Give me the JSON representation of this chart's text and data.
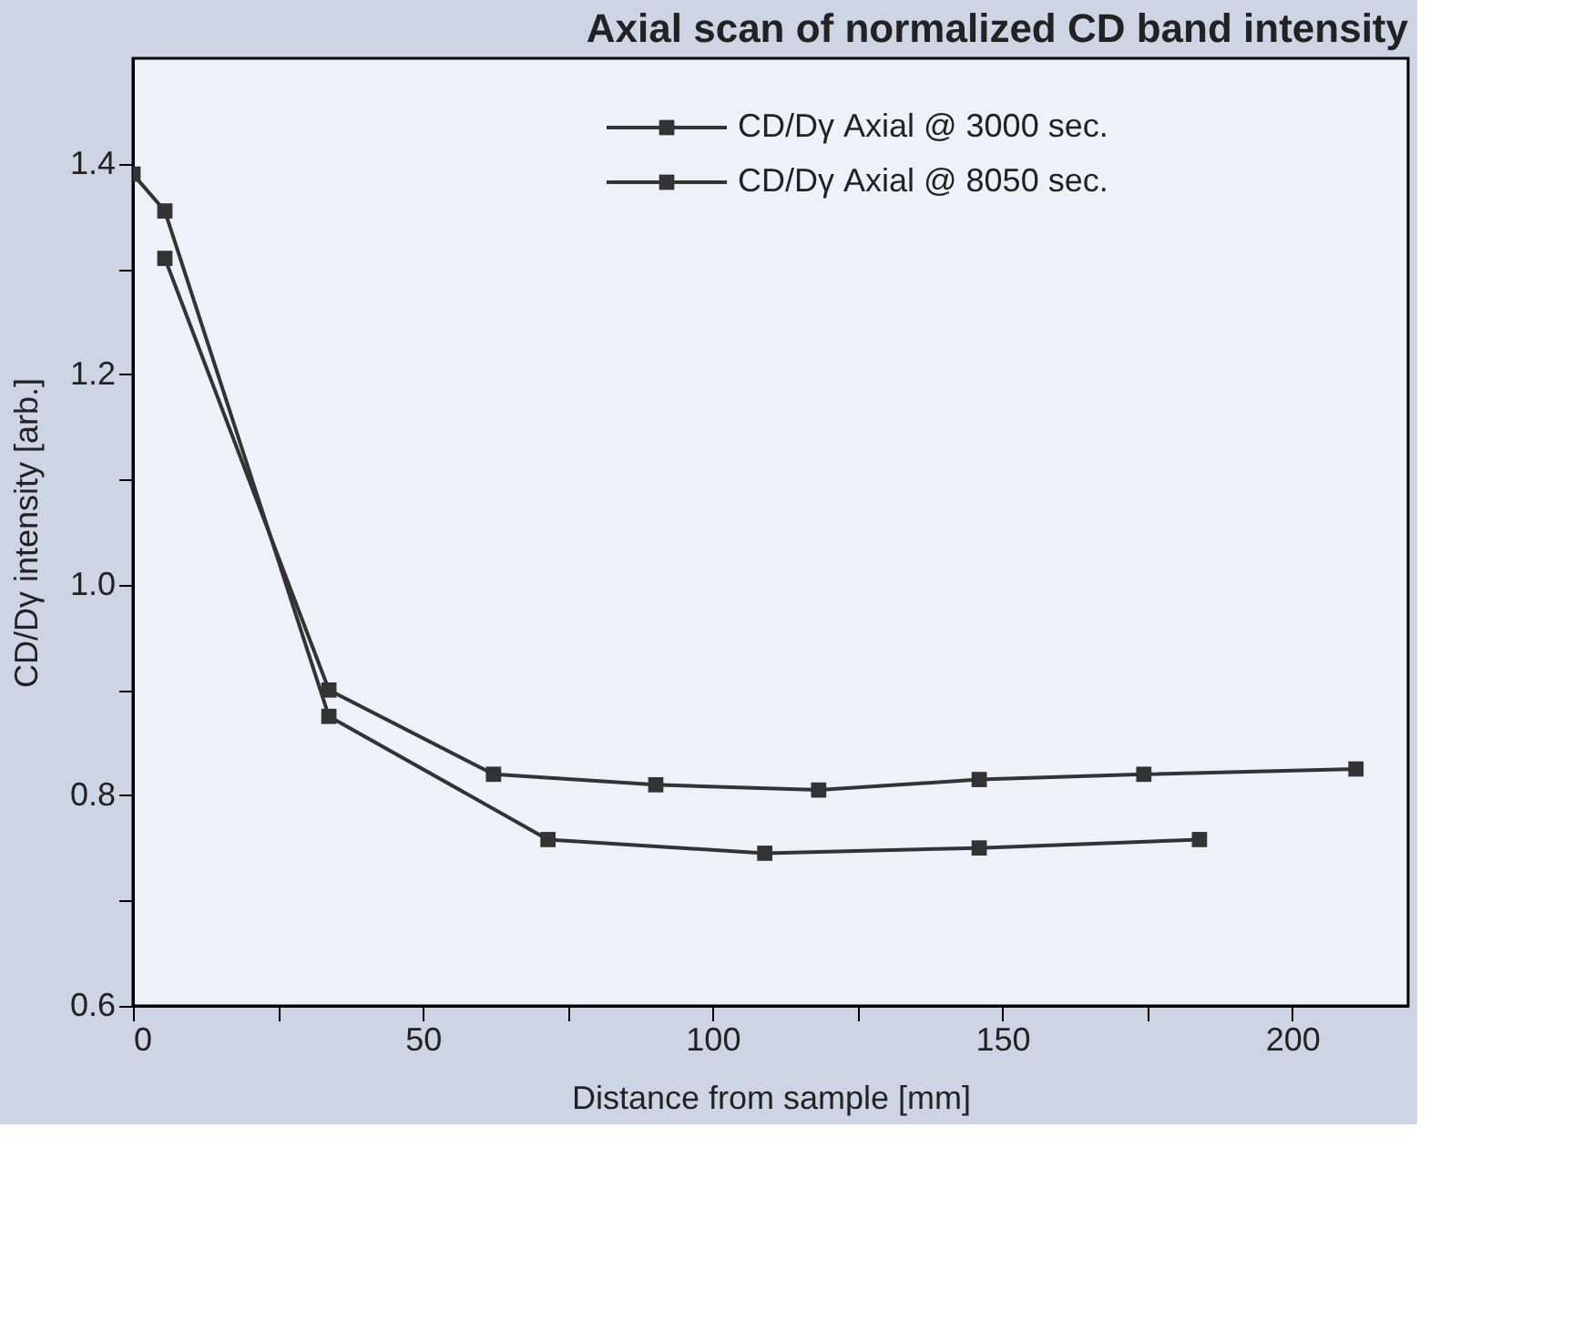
{
  "chart_data": {
    "type": "line",
    "title": "Axial scan of normalized CD band intensity",
    "xlabel": "Distance from sample [mm]",
    "ylabel": "CD/Dγ intensity [arb.]",
    "series": [
      {
        "name": "CD/Dγ Axial @ 3000 sec.",
        "color": "#333333",
        "x": [
          5.5,
          33.8,
          62.2,
          90.2,
          118.3,
          146,
          174.4,
          211
        ],
        "values": [
          1.31,
          0.9,
          0.82,
          0.81,
          0.805,
          0.815,
          0.82,
          0.825
        ]
      },
      {
        "name": "CD/Dγ Axial @ 8050 sec.",
        "color": "#333333",
        "x": [
          0,
          5.5,
          33.8,
          71.6,
          109,
          146,
          184
        ],
        "values": [
          1.39,
          1.355,
          0.875,
          0.758,
          0.745,
          0.75,
          0.758
        ]
      }
    ],
    "xlim": [
      0,
      220
    ],
    "xticks": [
      0,
      {
        "value": 25,
        "label": null
      },
      50,
      {
        "value": 75,
        "label": null
      },
      100,
      {
        "value": 125,
        "label": null
      },
      150,
      {
        "value": 175,
        "label": null
      },
      200
    ],
    "ylim": [
      0.6,
      1.5
    ],
    "yticks": [
      0.6,
      {
        "value": 0.7,
        "label": null
      },
      0.8,
      {
        "value": 0.9,
        "label": null
      },
      {
        "value": 1.0,
        "label": "1.0"
      },
      {
        "value": 1.1,
        "label": null
      },
      1.2,
      {
        "value": 1.3,
        "label": null
      },
      1.4
    ],
    "marker": "square",
    "line_style": "solid",
    "grid": false,
    "legend": "top right"
  }
}
